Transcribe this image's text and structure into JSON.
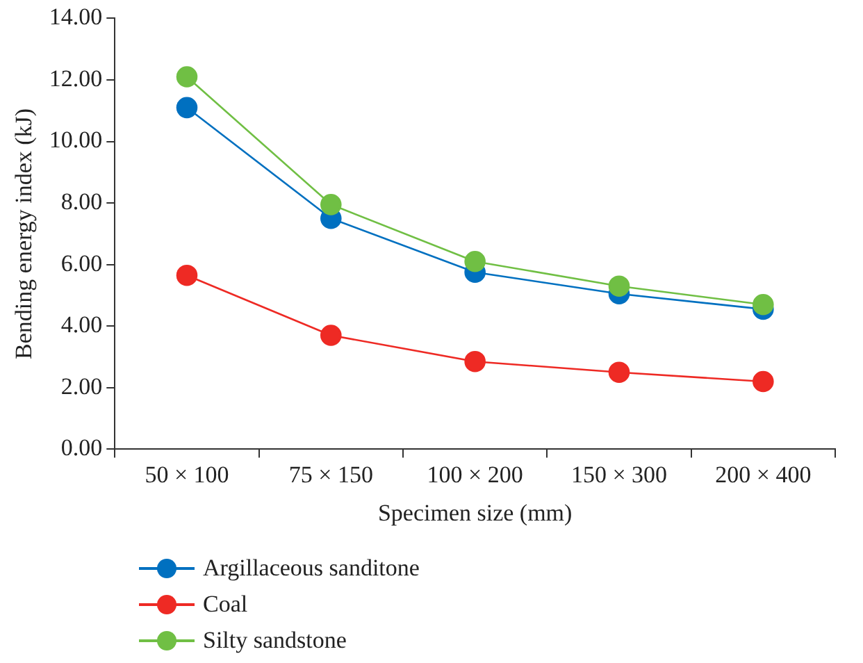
{
  "chart_data": {
    "type": "line",
    "xlabel": "Specimen size (mm)",
    "ylabel": "Bending energy index (kJ)",
    "categories": [
      "50 × 100",
      "75 × 150",
      "100 × 200",
      "150 × 300",
      "200 × 400"
    ],
    "series": [
      {
        "name": "Argillaceous sanditone",
        "color": "#0070c0",
        "values": [
          11.1,
          7.5,
          5.75,
          5.05,
          4.55
        ]
      },
      {
        "name": "Coal",
        "color": "#ee2a24",
        "values": [
          5.65,
          3.7,
          2.85,
          2.5,
          2.2
        ]
      },
      {
        "name": "Silty sandstone",
        "color": "#70bf44",
        "values": [
          12.1,
          7.95,
          6.1,
          5.3,
          4.7
        ]
      }
    ],
    "ylim": [
      0,
      14
    ],
    "yticks": [
      {
        "value": 0,
        "label": "0.00"
      },
      {
        "value": 2,
        "label": "2.00"
      },
      {
        "value": 4,
        "label": "4.00"
      },
      {
        "value": 6,
        "label": "6.00"
      },
      {
        "value": 8,
        "label": "8.00"
      },
      {
        "value": 10,
        "label": "10.00"
      },
      {
        "value": 12,
        "label": "12.00"
      },
      {
        "value": 14,
        "label": "14.00"
      }
    ],
    "marker": "circle",
    "grid": false,
    "legend": "bottom left"
  }
}
